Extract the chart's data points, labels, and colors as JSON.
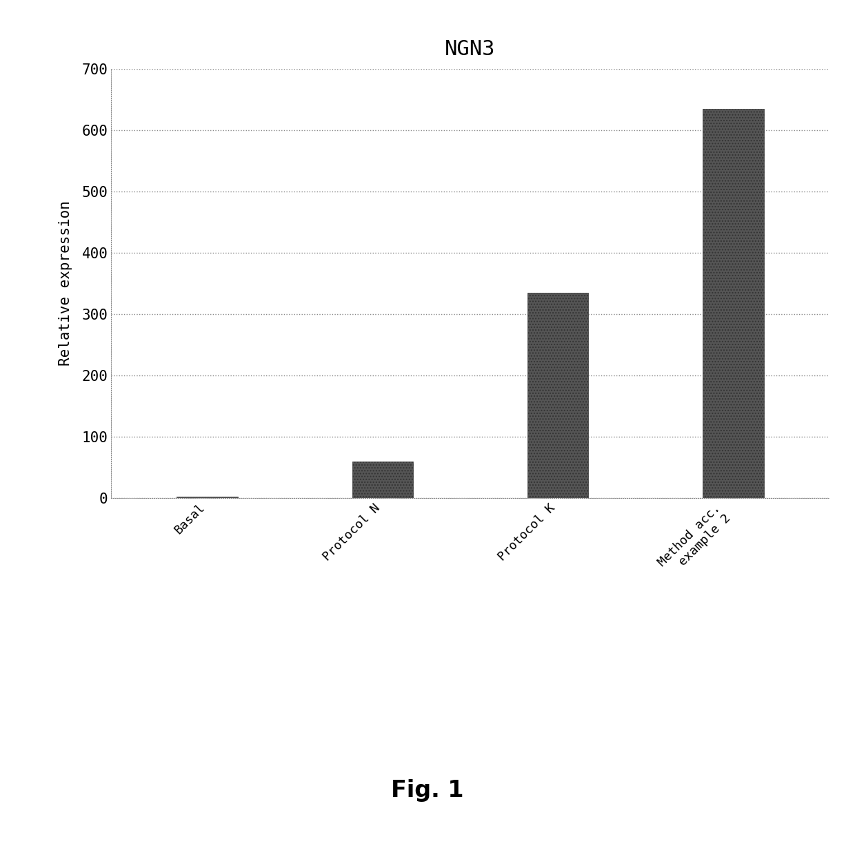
{
  "title": "NGN3",
  "ylabel": "Relative expression",
  "categories": [
    "Basal",
    "Protocol N",
    "Protocol K",
    "Method acc.\nexample 2"
  ],
  "values": [
    2,
    60,
    335,
    635
  ],
  "bar_color": "#555555",
  "ylim": [
    0,
    700
  ],
  "yticks": [
    0,
    100,
    200,
    300,
    400,
    500,
    600,
    700
  ],
  "title_fontsize": 22,
  "ylabel_fontsize": 15,
  "tick_fontsize": 15,
  "xlabel_fontsize": 13,
  "fig_caption": "Fig. 1",
  "caption_fontsize": 24,
  "background_color": "#ffffff",
  "grid_color": "#888888",
  "bar_width": 0.35
}
